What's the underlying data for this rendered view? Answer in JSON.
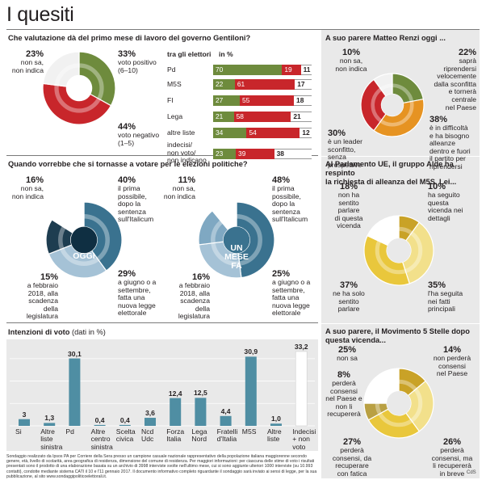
{
  "page_title": "I quesiti",
  "credit": "CdS",
  "footnote": "Sondaggio realizzato da Ipsos PA per Corriere della Sera presso un campione casuale nazionale rappresentativo della popolazione italiana maggiorenne secondo genere, età, livello di scolarità, area geografica di residenza, dimensione del comune di residenza. Per maggiori informazioni: per ciascuna delle stime di voto i risultati presentati sono il prodotto di una elaborazione basata su un archivio di 3998 interviste svolte nell'ultimo mese, cui si sono aggiunte ulteriori 1000 interviste (su 10.993 contatti), condotte mediante sistema CATI il 10 e l'11 gennaio 2017. Il documento informativo completo riguardante il sondaggio sarà inviato ai sensi di legge, per la sua pubblicazione, al sito www.sondaggipoliticoelettorali.it.",
  "colors": {
    "green": "#6e8b3d",
    "red": "#c8262b",
    "grey": "#bcbcbc",
    "darkblue": "#17455e",
    "blue": "#3a728f",
    "lightblue": "#a5c2d6",
    "orange": "#e69322",
    "yellow": "#e9c73c",
    "lightyellow": "#f2e08b",
    "mustard": "#c9a227",
    "teal_bar": "#4f8ea3",
    "panel": "#e9e9e9"
  },
  "q1": {
    "question": "Che valutazione dà del primo mese di lavoro del governo Gentiloni?",
    "labels": [
      {
        "pct": "23%",
        "text": "non sa,\nnon indica"
      },
      {
        "pct": "33%",
        "text": "voto positivo\n(6–10)"
      },
      {
        "pct": "44%",
        "text": "voto negativo\n(1–5)"
      }
    ],
    "table": {
      "header_left": "tra gli elettori",
      "header_right": "in %",
      "rows": [
        {
          "name": "Pd",
          "pos": 70,
          "neg": 19,
          "nsi": 11
        },
        {
          "name": "M5S",
          "pos": 22,
          "neg": 61,
          "nsi": 17
        },
        {
          "name": "FI",
          "pos": 27,
          "neg": 55,
          "nsi": 18
        },
        {
          "name": "Lega",
          "pos": 21,
          "neg": 58,
          "nsi": 21
        },
        {
          "name": "altre liste",
          "pos": 34,
          "neg": 54,
          "nsi": 12
        },
        {
          "name": "indecisi/\nnon voto/\nnon indicano",
          "pos": 23,
          "neg": 39,
          "nsi": 38
        }
      ]
    }
  },
  "q2": {
    "question": "A suo parere Matteo Renzi oggi ...",
    "labels": [
      {
        "pct": "10%",
        "text": "non sa,\nnon indica"
      },
      {
        "pct": "22%",
        "text": "saprà\nriprendersi\nvelocemente\ndalla sconfitta\ne tornerà\ncentrale\nnel Paese"
      },
      {
        "pct": "30%",
        "text": "è un leader\nsconfitto,\nsenza\nprospettive"
      },
      {
        "pct": "38%",
        "text": "è in difficoltà\ne ha bisogno\nalleanze\ndentro e fuori\nil partito per\nriprendersi"
      }
    ]
  },
  "q3": {
    "question": "Quando vorrebbe che si tornasse a votare per le elezioni politiche?",
    "oggi": {
      "center": "OGGI",
      "labels": [
        {
          "pct": "16%",
          "text": "non sa,\nnon indica"
        },
        {
          "pct": "40%",
          "text": "il prima\npossibile,\ndopo la\nsentenza\nsull'Italicum"
        },
        {
          "pct": "15%",
          "text": "a febbraio\n2018, alla\nscadenza\ndella\nlegislatura"
        },
        {
          "pct": "29%",
          "text": "a giugno o a\nsettembre,\nfatta una\nnuova legge\nelettorale"
        }
      ]
    },
    "mese": {
      "center": "UN\nMESE\nFA",
      "labels": [
        {
          "pct": "11%",
          "text": "non sa,\nnon indica"
        },
        {
          "pct": "48%",
          "text": "il prima\npossibile,\ndopo la\nsentenza\nsull'Italicum"
        },
        {
          "pct": "16%",
          "text": "a febbraio\n2018, alla\nscadenza\ndella\nlegislatura"
        },
        {
          "pct": "25%",
          "text": "a giugno o a\nsettembre,\nfatta una\nnuova legge\nelettorale"
        }
      ]
    }
  },
  "q4": {
    "question": "Al Parlamento UE, il gruppo Alde ha respinto\nla richiesta di alleanza del M5S. Lei...",
    "labels": [
      {
        "pct": "18%",
        "text": "non ha\nsentito\nparlare\ndi questa\nvicenda"
      },
      {
        "pct": "10%",
        "text": "ha seguito\nquesta\nvicenda nei\ndettagli"
      },
      {
        "pct": "37%",
        "text": "ne ha solo\nsentito\nparlare"
      },
      {
        "pct": "35%",
        "text": "l'ha seguita\nnei fatti\nprincipali"
      }
    ]
  },
  "q5": {
    "question": "A suo parere, il Movimento 5 Stelle dopo\nquesta vicenda...",
    "labels": [
      {
        "pct": "25%",
        "text": "non sa"
      },
      {
        "pct": "14%",
        "text": "non perderà\nconsensi\nnel Paese"
      },
      {
        "pct": "8%",
        "text": "perderà\nconsensi\nnel Paese e\nnon li\nrecupererà"
      },
      {
        "pct": "27%",
        "text": "perderà\nconsensi, da\nrecuperare\ncon fatica"
      },
      {
        "pct": "26%",
        "text": "perderà\nconsensi, ma\nli recupererà\nin breve"
      }
    ]
  },
  "q6_title": "Intenzioni di voto",
  "q6_unit": "(dati in %)",
  "chart_data": [
    {
      "type": "pie",
      "title": "Che valutazione dà del primo mese di lavoro del governo Gentiloni?",
      "categories": [
        "voto positivo (6–10)",
        "voto negativo (1–5)",
        "non sa, non indica"
      ],
      "values": [
        33,
        44,
        23
      ]
    },
    {
      "type": "table",
      "title": "tra gli elettori (in %)",
      "categories": [
        "Pd",
        "M5S",
        "FI",
        "Lega",
        "altre liste",
        "indecisi/non voto/non indicano"
      ],
      "series": [
        {
          "name": "voto positivo",
          "values": [
            70,
            22,
            27,
            21,
            34,
            23
          ]
        },
        {
          "name": "voto negativo",
          "values": [
            19,
            61,
            55,
            58,
            54,
            39
          ]
        },
        {
          "name": "non sa, non indica",
          "values": [
            11,
            17,
            18,
            21,
            12,
            38
          ]
        }
      ]
    },
    {
      "type": "pie",
      "title": "A suo parere Matteo Renzi oggi ...",
      "categories": [
        "saprà riprendersi velocemente",
        "è in difficoltà e ha bisogno alleanze",
        "è un leader sconfitto, senza prospettive",
        "non sa, non indica"
      ],
      "values": [
        22,
        38,
        30,
        10
      ]
    },
    {
      "type": "pie",
      "title": "OGGI",
      "categories": [
        "il prima possibile, dopo la sentenza sull'Italicum",
        "a giugno o a settembre, fatta una nuova legge elettorale",
        "a febbraio 2018, alla scadenza della legislatura",
        "non sa, non indica"
      ],
      "values": [
        40,
        29,
        15,
        16
      ]
    },
    {
      "type": "pie",
      "title": "UN MESE FA",
      "categories": [
        "il prima possibile, dopo la sentenza sull'Italicum",
        "a giugno o a settembre, fatta una nuova legge elettorale",
        "a febbraio 2018, alla scadenza della legislatura",
        "non sa, non indica"
      ],
      "values": [
        48,
        25,
        16,
        11
      ]
    },
    {
      "type": "pie",
      "title": "Al Parlamento UE, il gruppo Alde ha respinto la richiesta di alleanza del M5S. Lei...",
      "categories": [
        "ha seguito questa vicenda nei dettagli",
        "l'ha seguita nei fatti principali",
        "ne ha solo sentito parlare",
        "non ha sentito parlare di questa vicenda"
      ],
      "values": [
        10,
        35,
        37,
        18
      ]
    },
    {
      "type": "pie",
      "title": "A suo parere, il Movimento 5 Stelle dopo questa vicenda...",
      "categories": [
        "non perderà consensi nel Paese",
        "perderà consensi, ma li recupererà in breve",
        "perderà consensi, da recuperare con fatica",
        "perderà consensi nel Paese e non li recupererà",
        "non sa"
      ],
      "values": [
        14,
        26,
        27,
        8,
        25
      ]
    },
    {
      "type": "bar",
      "title": "Intenzioni di voto (dati in %)",
      "categories": [
        "Si",
        "Altre liste sinistra",
        "Pd",
        "Altre centro sinistra",
        "Scelta civica",
        "Ncd Udc",
        "Forza Italia",
        "Lega Nord",
        "Fratelli d'Italia",
        "M5S",
        "Altre liste",
        "Indecisi + non voto"
      ],
      "values": [
        3,
        1.3,
        30.1,
        0.4,
        0.4,
        3.6,
        12.4,
        12.5,
        4.4,
        30.9,
        1.0,
        33.2
      ],
      "value_labels": [
        "3",
        "1,3",
        "30,1",
        "0,4",
        "0,4",
        "3,6",
        "12,4",
        "12,5",
        "4,4",
        "30,9",
        "1,0",
        "33,2"
      ],
      "ylim": [
        0,
        35
      ]
    }
  ]
}
